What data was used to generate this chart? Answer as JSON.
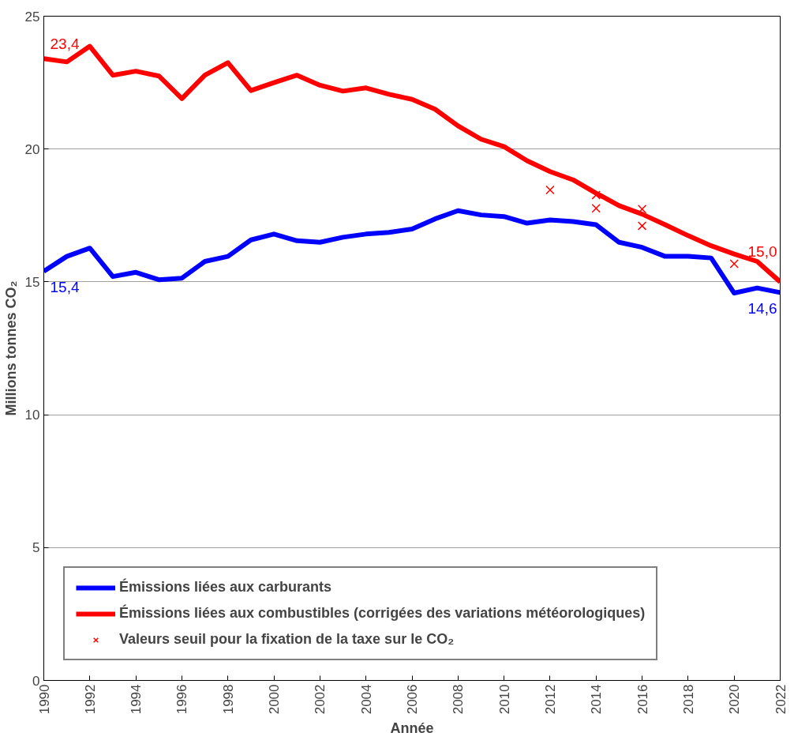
{
  "chart_data": {
    "type": "line",
    "xlabel": "Année",
    "ylabel": "Millions tonnes CO₂",
    "xlim": [
      1990,
      2022
    ],
    "xticks": [
      1990,
      1992,
      1994,
      1996,
      1998,
      2000,
      2002,
      2004,
      2006,
      2008,
      2010,
      2012,
      2014,
      2016,
      2018,
      2020,
      2022
    ],
    "ylim": [
      0,
      25
    ],
    "yticks": [
      0,
      5,
      10,
      15,
      20,
      25
    ],
    "grid": "y",
    "legend": "bottom left",
    "x": [
      1990,
      1991,
      1992,
      1993,
      1994,
      1995,
      1996,
      1997,
      1998,
      1999,
      2000,
      2001,
      2002,
      2003,
      2004,
      2005,
      2006,
      2007,
      2008,
      2009,
      2010,
      2011,
      2012,
      2013,
      2014,
      2015,
      2016,
      2017,
      2018,
      2019,
      2020,
      2021,
      2022
    ],
    "series": [
      {
        "name": "Émissions liées aux carburants",
        "color": "#0000ff",
        "values": [
          15.4,
          15.96,
          16.27,
          15.2,
          15.36,
          15.08,
          15.14,
          15.77,
          15.96,
          16.58,
          16.8,
          16.55,
          16.49,
          16.68,
          16.8,
          16.86,
          16.99,
          17.37,
          17.68,
          17.52,
          17.46,
          17.21,
          17.33,
          17.27,
          17.15,
          16.49,
          16.3,
          15.96,
          15.96,
          15.9,
          14.58,
          14.77,
          14.6
        ],
        "value_labels": [
          "15,4",
          null,
          null,
          null,
          null,
          null,
          null,
          null,
          null,
          null,
          null,
          null,
          null,
          null,
          null,
          null,
          null,
          null,
          null,
          null,
          null,
          null,
          null,
          null,
          null,
          null,
          null,
          null,
          null,
          null,
          null,
          null,
          "14,6"
        ]
      },
      {
        "name": "Émissions liées aux combustibles (corrigées des variations météorologiques)",
        "color": "#ff0000",
        "values": [
          23.4,
          23.28,
          23.87,
          22.78,
          22.93,
          22.75,
          21.9,
          22.78,
          23.25,
          22.2,
          22.5,
          22.78,
          22.4,
          22.18,
          22.3,
          22.06,
          21.87,
          21.5,
          20.87,
          20.37,
          20.09,
          19.56,
          19.15,
          18.84,
          18.34,
          17.87,
          17.55,
          17.15,
          16.74,
          16.36,
          16.05,
          15.77,
          15.0
        ],
        "value_labels": [
          "23,4",
          null,
          null,
          null,
          null,
          null,
          null,
          null,
          null,
          null,
          null,
          null,
          null,
          null,
          null,
          null,
          null,
          null,
          null,
          null,
          null,
          null,
          null,
          null,
          null,
          null,
          null,
          null,
          null,
          null,
          null,
          null,
          "15,0"
        ]
      },
      {
        "name": "Valeurs seuil pour la fixation de la taxe sur le CO₂",
        "color": "#ff0000",
        "type": "scatter",
        "marker": "cross",
        "x": [
          2012,
          2014,
          2014,
          2016,
          2016,
          2020
        ],
        "values": [
          18.46,
          18.27,
          17.77,
          17.74,
          17.11,
          15.68
        ]
      }
    ]
  }
}
